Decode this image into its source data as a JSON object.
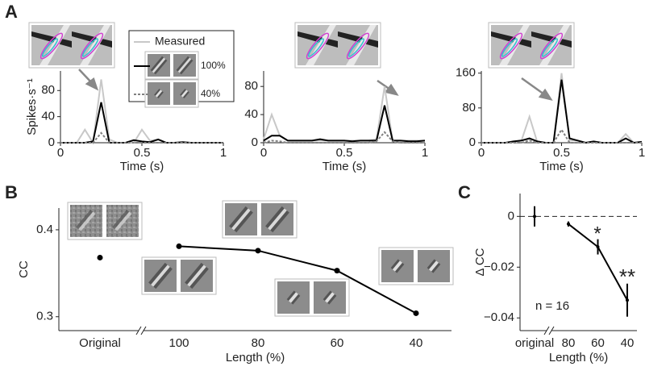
{
  "panel_labels": [
    "A",
    "B",
    "C"
  ],
  "chart_data": [
    {
      "type": "line",
      "ylabel": "Spikes·s⁻¹",
      "xlabel": "Time (s)",
      "x": [
        0,
        0.05,
        0.1,
        0.15,
        0.2,
        0.25,
        0.3,
        0.35,
        0.4,
        0.45,
        0.5,
        0.55,
        0.6,
        0.65,
        0.7,
        0.75,
        0.8,
        0.85,
        0.9,
        0.95,
        1
      ],
      "xlim": [
        0,
        1
      ],
      "xticks": [
        0,
        0.5,
        1
      ],
      "ylim": [
        0,
        110
      ],
      "yticks": [
        0,
        40,
        80
      ],
      "legend": true,
      "series": [
        {
          "name": "Measured",
          "color": "#c8c8c8",
          "linestyle": "solid",
          "values": [
            0,
            0,
            0,
            20,
            0,
            97,
            5,
            0,
            0,
            0,
            20,
            3,
            5,
            0,
            0,
            0,
            0,
            0,
            0,
            0,
            0
          ]
        },
        {
          "name": "100%",
          "color": "#000000",
          "linestyle": "solid",
          "values": [
            0,
            0,
            0,
            0,
            2,
            62,
            0,
            0,
            0,
            4,
            2,
            1,
            5,
            0,
            0,
            1,
            0,
            0,
            0,
            0,
            0
          ]
        },
        {
          "name": "40%",
          "color": "#808080",
          "linestyle": "dotted",
          "values": [
            0,
            0,
            0,
            0,
            0,
            15,
            0,
            0,
            0,
            0,
            0,
            0,
            0,
            0,
            0,
            0,
            0,
            0,
            0,
            0,
            0
          ]
        }
      ]
    },
    {
      "type": "line",
      "xlabel": "Time (s)",
      "x": [
        0,
        0.05,
        0.1,
        0.15,
        0.2,
        0.25,
        0.3,
        0.35,
        0.4,
        0.45,
        0.5,
        0.55,
        0.6,
        0.65,
        0.7,
        0.75,
        0.8,
        0.85,
        0.9,
        0.95,
        1
      ],
      "xlim": [
        0,
        1
      ],
      "xticks": [
        0,
        0.5,
        1
      ],
      "ylim": [
        0,
        102
      ],
      "yticks": [
        0,
        40,
        80
      ],
      "series": [
        {
          "color": "#c8c8c8",
          "linestyle": "solid",
          "values": [
            5,
            40,
            10,
            3,
            3,
            3,
            3,
            3,
            3,
            3,
            3,
            3,
            3,
            3,
            5,
            80,
            3,
            3,
            3,
            3,
            3
          ]
        },
        {
          "color": "#000000",
          "linestyle": "solid",
          "values": [
            3,
            10,
            10,
            3,
            3,
            3,
            3,
            5,
            3,
            3,
            3,
            2,
            3,
            3,
            3,
            53,
            3,
            3,
            2,
            2,
            3
          ]
        },
        {
          "color": "#808080",
          "linestyle": "dotted",
          "values": [
            0,
            3,
            2,
            0,
            0,
            0,
            0,
            0,
            0,
            0,
            0,
            0,
            0,
            0,
            2,
            15,
            2,
            0,
            0,
            0,
            0
          ]
        }
      ]
    },
    {
      "type": "line",
      "xlabel": "Time (s)",
      "x": [
        0,
        0.05,
        0.1,
        0.15,
        0.2,
        0.25,
        0.3,
        0.35,
        0.4,
        0.45,
        0.5,
        0.55,
        0.6,
        0.65,
        0.7,
        0.75,
        0.8,
        0.85,
        0.9,
        0.95,
        1
      ],
      "xlim": [
        0,
        1
      ],
      "xticks": [
        0,
        0.5,
        1
      ],
      "ylim": [
        0,
        165
      ],
      "yticks": [
        0,
        80,
        160
      ],
      "series": [
        {
          "color": "#c8c8c8",
          "linestyle": "solid",
          "values": [
            0,
            0,
            0,
            0,
            0,
            5,
            60,
            0,
            0,
            0,
            160,
            5,
            5,
            0,
            0,
            0,
            0,
            0,
            20,
            0,
            0
          ]
        },
        {
          "color": "#000000",
          "linestyle": "solid",
          "values": [
            0,
            0,
            0,
            0,
            3,
            5,
            10,
            3,
            0,
            0,
            145,
            10,
            5,
            0,
            3,
            0,
            0,
            0,
            10,
            0,
            2
          ]
        },
        {
          "color": "#808080",
          "linestyle": "dotted",
          "values": [
            0,
            0,
            0,
            0,
            0,
            0,
            5,
            0,
            0,
            0,
            30,
            0,
            0,
            0,
            0,
            0,
            0,
            0,
            0,
            0,
            0
          ]
        }
      ]
    },
    {
      "type": "category-line",
      "ylabel": "CC",
      "xlabel": "Length (%)",
      "categories": [
        "Original",
        "100",
        "80",
        "60",
        "40"
      ],
      "values": [
        0.368,
        0.381,
        0.376,
        0.353,
        0.304
      ],
      "color": "#000000",
      "axis_break": true,
      "ylim": [
        0.284,
        0.425
      ],
      "yticks": [
        0.3,
        0.4
      ]
    },
    {
      "type": "category-line",
      "ylabel": "Δ CC",
      "xlabel": "Length (%)",
      "categories": [
        "original",
        "80",
        "60",
        "40"
      ],
      "values": [
        0,
        -0.003,
        -0.012,
        -0.033
      ],
      "errors": [
        0.004,
        0.001,
        0.003,
        0.0065
      ],
      "color": "#000000",
      "axis_break": true,
      "ylim": [
        -0.045,
        0.009
      ],
      "yticks": [
        0,
        {
          "value": -0.02,
          "label": "−0.02"
        },
        {
          "value": -0.04,
          "label": "−0.04"
        }
      ],
      "hline": 0,
      "annotations": [
        "*",
        "**",
        "n = 16"
      ]
    }
  ]
}
